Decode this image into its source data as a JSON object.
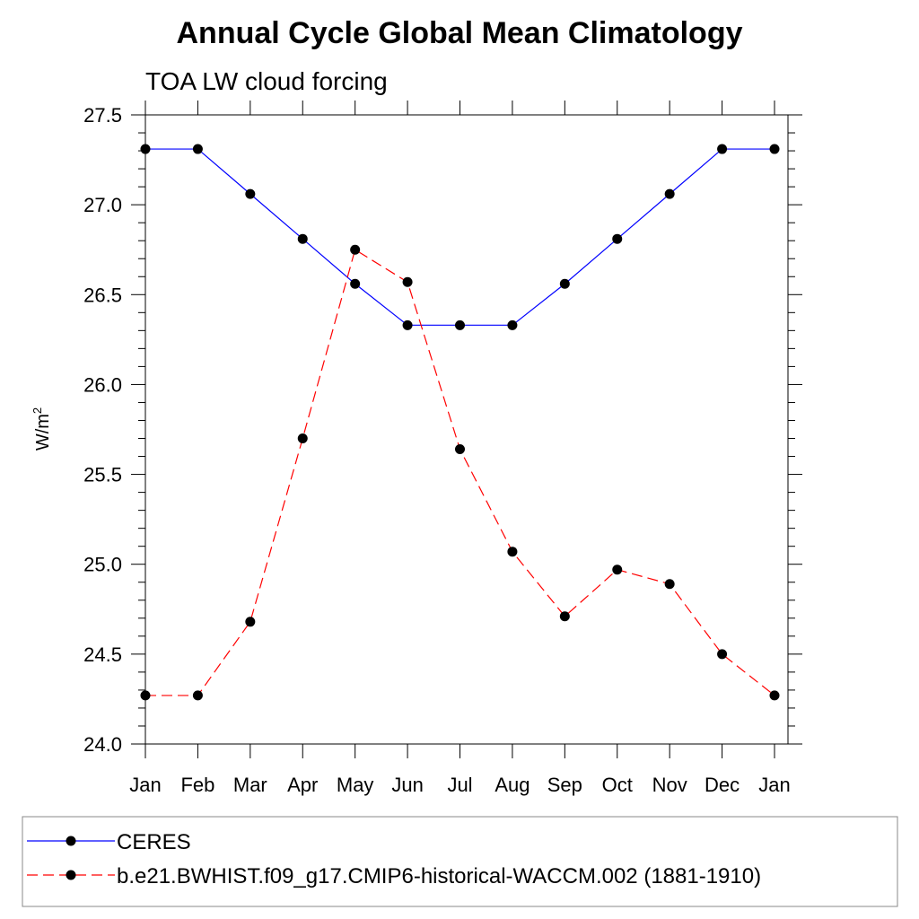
{
  "chart_data": {
    "type": "line",
    "title": "Annual Cycle Global Mean Climatology",
    "subtitle": "TOA LW cloud forcing",
    "ylabel": "W/m",
    "ylabel_superscript": "2",
    "xlabel": "",
    "categories": [
      "Jan",
      "Feb",
      "Mar",
      "Apr",
      "May",
      "Jun",
      "Jul",
      "Aug",
      "Sep",
      "Oct",
      "Nov",
      "Dec",
      "Jan"
    ],
    "ylim": [
      24.0,
      27.5
    ],
    "yticks": [
      24.0,
      24.5,
      25.0,
      25.5,
      26.0,
      26.5,
      27.0,
      27.5
    ],
    "ytick_labels": [
      "24.0",
      "24.5",
      "25.0",
      "25.5",
      "26.0",
      "26.5",
      "27.0",
      "27.5"
    ],
    "grid": false,
    "legend_position": "bottom",
    "series": [
      {
        "name": "CERES",
        "color": "#0000ff",
        "line_style": "solid",
        "marker": "filled-circle",
        "values": [
          27.31,
          27.31,
          27.06,
          26.81,
          26.56,
          26.33,
          26.33,
          26.33,
          26.56,
          26.81,
          27.06,
          27.31,
          27.31
        ]
      },
      {
        "name": "b.e21.BWHIST.f09_g17.CMIP6-historical-WACCM.002 (1881-1910)",
        "color": "#ff0000",
        "line_style": "dashed",
        "marker": "filled-circle",
        "values": [
          24.27,
          24.27,
          24.68,
          25.7,
          26.75,
          26.57,
          25.64,
          25.07,
          24.71,
          24.97,
          24.89,
          24.5,
          24.27
        ]
      }
    ]
  }
}
